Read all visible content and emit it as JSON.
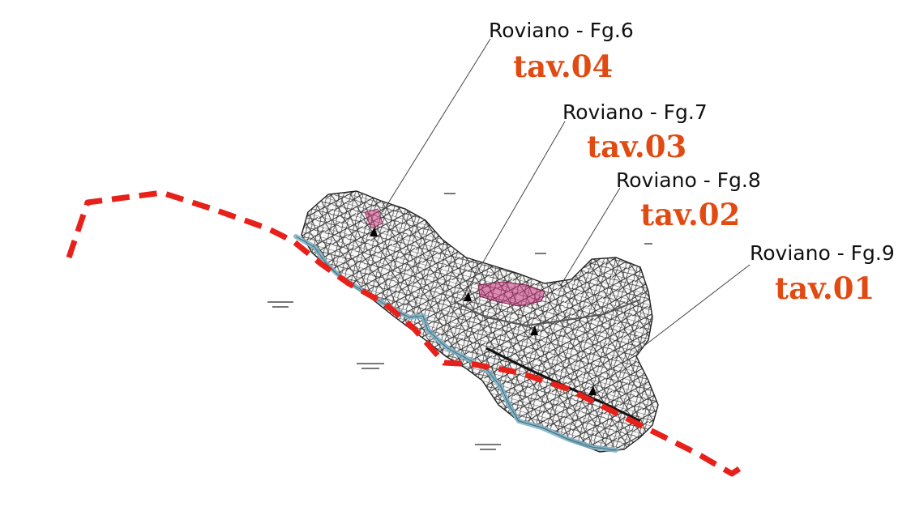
{
  "map": {
    "boundary_color": "#e8201a",
    "label_color": "#e24a12",
    "river_color": "#7fb1c4",
    "parcel_color": "#2b2b2b",
    "highlight_color": "#c8327a"
  },
  "sheets": [
    {
      "sheet": "Roviano  - Fg.6",
      "tav": "tav.04"
    },
    {
      "sheet": "Roviano  - Fg.7",
      "tav": "tav.03"
    },
    {
      "sheet": "Roviano  - Fg.8",
      "tav": "tav.02"
    },
    {
      "sheet": "Roviano  - Fg.9",
      "tav": "tav.01"
    }
  ]
}
